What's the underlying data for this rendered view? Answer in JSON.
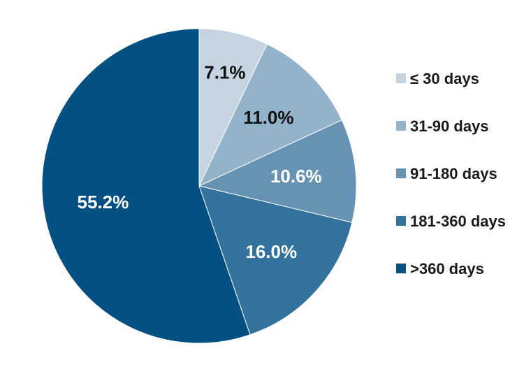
{
  "chart_data": {
    "type": "pie",
    "title": "",
    "slices": [
      {
        "label": "≤ 30 days",
        "value": 7.1,
        "display": "7.1%",
        "color": "#c5d4e0",
        "text_color": "#111111"
      },
      {
        "label": "31-90 days",
        "value": 11.0,
        "display": "11.0%",
        "color": "#93b3cb",
        "text_color": "#111111"
      },
      {
        "label": "91-180 days",
        "value": 10.6,
        "display": "10.6%",
        "color": "#6693b3",
        "text_color": "#ffffff"
      },
      {
        "label": "181-360 days",
        "value": 16.0,
        "display": "16.0%",
        "color": "#33729c",
        "text_color": "#ffffff"
      },
      {
        "label": ">360 days",
        "value": 55.2,
        "display": "55.2%",
        "color": "#045082",
        "text_color": "#ffffff"
      }
    ],
    "legend_position": "right",
    "start": "top, clockwise"
  }
}
